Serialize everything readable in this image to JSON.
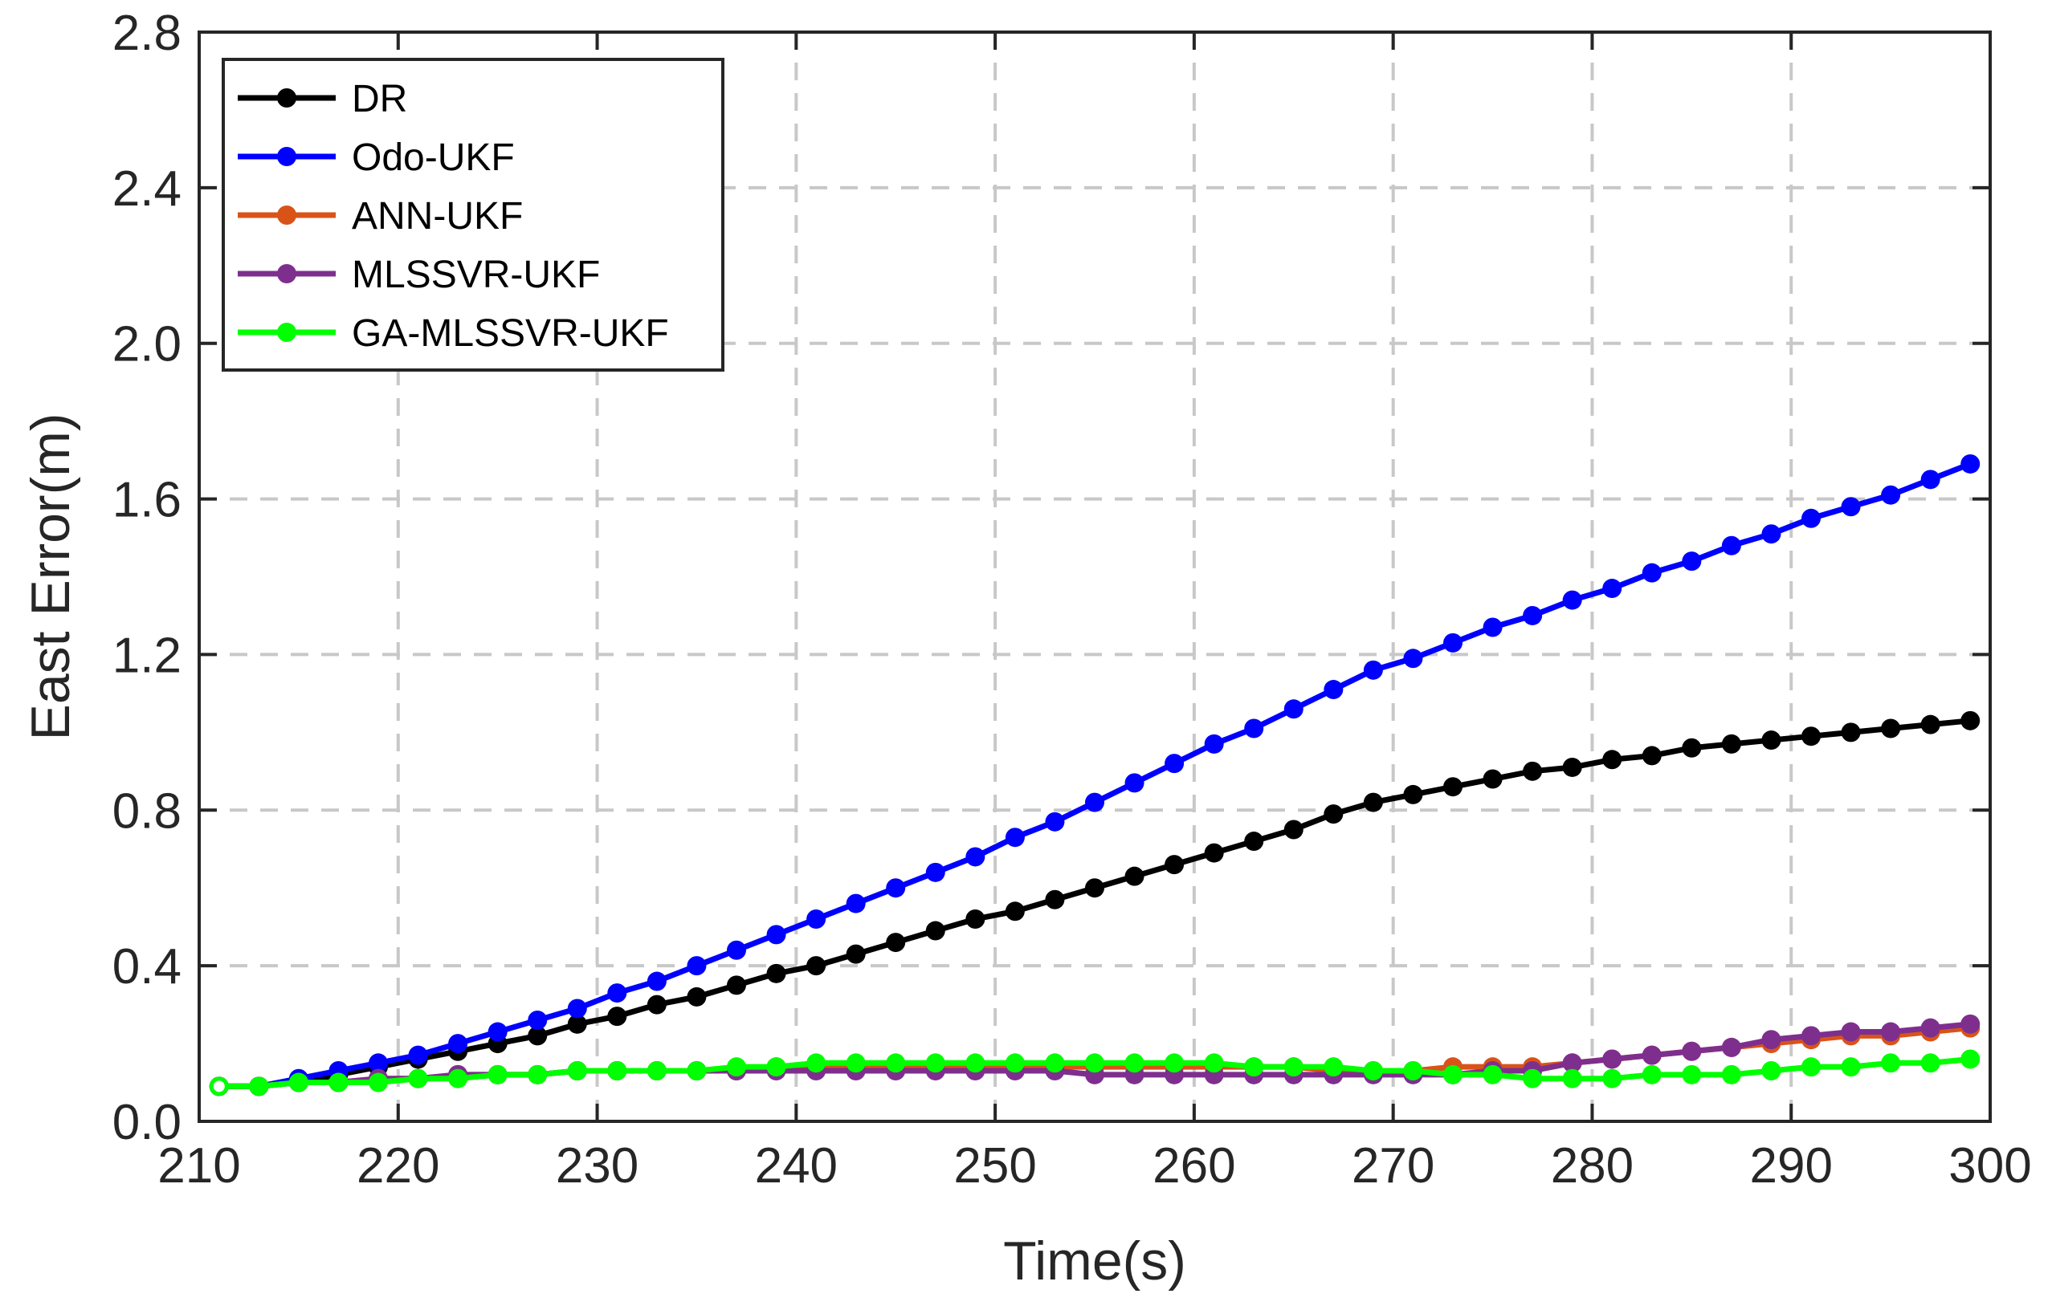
{
  "chart_data": {
    "type": "line",
    "title": "",
    "xlabel": "Time(s)",
    "ylabel": "East Error(m)",
    "xlim": [
      210,
      300
    ],
    "ylim": [
      0,
      2.8
    ],
    "xticks": [
      210,
      220,
      230,
      240,
      250,
      260,
      270,
      280,
      290,
      300
    ],
    "yticks": [
      0.0,
      0.4,
      0.8,
      1.2,
      1.6,
      2.0,
      2.4,
      2.8
    ],
    "xtick_labels": [
      "210",
      "220",
      "230",
      "240",
      "250",
      "260",
      "270",
      "280",
      "290",
      "300"
    ],
    "ytick_labels": [
      "0.0",
      "0.4",
      "0.8",
      "1.2",
      "1.6",
      "2.0",
      "2.4",
      "2.8"
    ],
    "grid": true,
    "legend_position": "top-left",
    "x": [
      211,
      213,
      215,
      217,
      219,
      221,
      223,
      225,
      227,
      229,
      231,
      233,
      235,
      237,
      239,
      241,
      243,
      245,
      247,
      249,
      251,
      253,
      255,
      257,
      259,
      261,
      263,
      265,
      267,
      269,
      271,
      273,
      275,
      277,
      279,
      281,
      283,
      285,
      287,
      289,
      291,
      293,
      295,
      297,
      299
    ],
    "series": [
      {
        "name": "DR",
        "color": "#000000",
        "values": [
          0.09,
          0.09,
          0.1,
          0.12,
          0.14,
          0.16,
          0.18,
          0.2,
          0.22,
          0.25,
          0.27,
          0.3,
          0.32,
          0.35,
          0.38,
          0.4,
          0.43,
          0.46,
          0.49,
          0.52,
          0.54,
          0.57,
          0.6,
          0.63,
          0.66,
          0.69,
          0.72,
          0.75,
          0.79,
          0.82,
          0.84,
          0.86,
          0.88,
          0.9,
          0.91,
          0.93,
          0.94,
          0.96,
          0.97,
          0.98,
          0.99,
          1.0,
          1.01,
          1.02,
          1.03
        ]
      },
      {
        "name": "Odo-UKF",
        "color": "#0000ff",
        "values": [
          0.09,
          0.09,
          0.11,
          0.13,
          0.15,
          0.17,
          0.2,
          0.23,
          0.26,
          0.29,
          0.33,
          0.36,
          0.4,
          0.44,
          0.48,
          0.52,
          0.56,
          0.6,
          0.64,
          0.68,
          0.73,
          0.77,
          0.82,
          0.87,
          0.92,
          0.97,
          1.01,
          1.06,
          1.11,
          1.16,
          1.19,
          1.23,
          1.27,
          1.3,
          1.34,
          1.37,
          1.41,
          1.44,
          1.48,
          1.51,
          1.55,
          1.58,
          1.61,
          1.65,
          1.69
        ]
      },
      {
        "name": "ANN-UKF",
        "color": "#d95319",
        "values": [
          0.09,
          0.09,
          0.1,
          0.1,
          0.11,
          0.11,
          0.12,
          0.12,
          0.12,
          0.13,
          0.13,
          0.13,
          0.13,
          0.13,
          0.14,
          0.14,
          0.14,
          0.14,
          0.14,
          0.14,
          0.14,
          0.14,
          0.14,
          0.14,
          0.14,
          0.14,
          0.14,
          0.14,
          0.13,
          0.13,
          0.13,
          0.14,
          0.14,
          0.14,
          0.15,
          0.16,
          0.17,
          0.18,
          0.19,
          0.2,
          0.21,
          0.22,
          0.22,
          0.23,
          0.24
        ]
      },
      {
        "name": "MLSSVR-UKF",
        "color": "#7e2f8e",
        "values": [
          0.09,
          0.09,
          0.1,
          0.1,
          0.11,
          0.11,
          0.12,
          0.12,
          0.12,
          0.13,
          0.13,
          0.13,
          0.13,
          0.13,
          0.13,
          0.13,
          0.13,
          0.13,
          0.13,
          0.13,
          0.13,
          0.13,
          0.12,
          0.12,
          0.12,
          0.12,
          0.12,
          0.12,
          0.12,
          0.12,
          0.12,
          0.12,
          0.13,
          0.13,
          0.15,
          0.16,
          0.17,
          0.18,
          0.19,
          0.21,
          0.22,
          0.23,
          0.23,
          0.24,
          0.25
        ]
      },
      {
        "name": "GA-MLSSVR-UKF",
        "color": "#00ff00",
        "values": [
          0.09,
          0.09,
          0.1,
          0.1,
          0.1,
          0.11,
          0.11,
          0.12,
          0.12,
          0.13,
          0.13,
          0.13,
          0.13,
          0.14,
          0.14,
          0.15,
          0.15,
          0.15,
          0.15,
          0.15,
          0.15,
          0.15,
          0.15,
          0.15,
          0.15,
          0.15,
          0.14,
          0.14,
          0.14,
          0.13,
          0.13,
          0.12,
          0.12,
          0.11,
          0.11,
          0.11,
          0.12,
          0.12,
          0.12,
          0.13,
          0.14,
          0.14,
          0.15,
          0.15,
          0.16
        ]
      }
    ]
  }
}
